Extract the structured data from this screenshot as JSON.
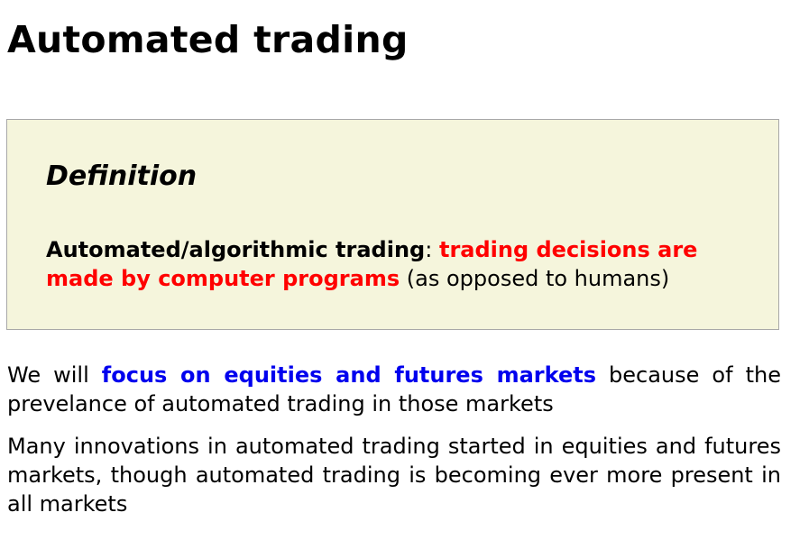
{
  "title": "Automated trading",
  "definition": {
    "heading": "Definition",
    "term": "Automated/algorithmic trading",
    "separator": ":",
    "highlight": "trading decisions are made by computer programs",
    "rest": "(as opposed to humans)"
  },
  "paragraphs": [
    {
      "before": "We will",
      "highlight": "focus on equities and futures markets",
      "after": "because of the prevelance of automated trading in those markets"
    },
    {
      "text": "Many innovations in automated trading started in equities and futures markets, though automated trading is becoming ever more present in all markets"
    }
  ],
  "colors": {
    "box_background": "#f5f5dc",
    "box_border": "#a8a8a8",
    "red_emphasis": "#ff0000",
    "blue_emphasis": "#0000ee"
  }
}
